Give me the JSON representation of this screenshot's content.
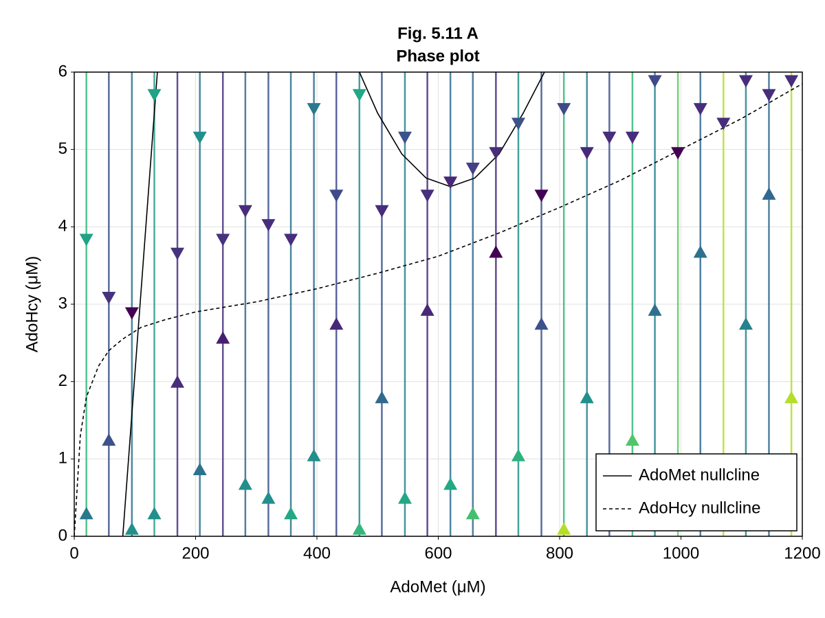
{
  "chart_data": {
    "type": "line",
    "title": "Fig. 5.11 A",
    "subtitle": "Phase plot",
    "xlabel": "AdoMet (μM)",
    "ylabel": "AdoHcy (μM)",
    "xlim": [
      0,
      1200
    ],
    "ylim": [
      0,
      6
    ],
    "xticks": [
      0,
      200,
      400,
      600,
      800,
      1000,
      1200
    ],
    "yticks": [
      0,
      1,
      2,
      3,
      4,
      5,
      6
    ],
    "grid": true,
    "legend": "bottom-right",
    "series": [
      {
        "name": "AdoMet nullcline",
        "color": "#000000",
        "dash": "solid",
        "x": [
          80,
          137,
          null,
          470,
          500,
          540,
          580,
          620,
          660,
          700,
          740,
          775
        ],
        "values": [
          0,
          6,
          null,
          6,
          5.47,
          4.94,
          4.63,
          4.52,
          4.63,
          4.94,
          5.47,
          6
        ]
      },
      {
        "name": "AdoHcy nullcline",
        "color": "#000000",
        "dash": "dashed",
        "x": [
          0,
          10,
          20,
          40,
          57,
          80,
          110,
          150,
          200,
          300,
          400,
          500,
          600,
          700,
          800,
          900,
          1000,
          1100,
          1200
        ],
        "values": [
          0,
          1.3,
          1.8,
          2.2,
          2.4,
          2.55,
          2.7,
          2.8,
          2.9,
          3.03,
          3.2,
          3.4,
          3.62,
          3.92,
          4.25,
          4.6,
          5.0,
          5.4,
          5.85
        ]
      }
    ],
    "streamlines": {
      "x": [
        20,
        57,
        95,
        132,
        170,
        207,
        245,
        282,
        320,
        357,
        395,
        432,
        470,
        507,
        545,
        582,
        620,
        657,
        695,
        732,
        770,
        807,
        845,
        882,
        920,
        957,
        995,
        1032,
        1070,
        1107,
        1145,
        1182
      ],
      "color": [
        "#35b779",
        "#3b528b",
        "#2c728e",
        "#2a9d8a",
        "#46327e",
        "#2c728e",
        "#46327e",
        "#31688e",
        "#3b528b",
        "#2c728e",
        "#2c728e",
        "#3e4a89",
        "#21908c",
        "#3b528b",
        "#26828e",
        "#472d7b",
        "#2c728e",
        "#31688e",
        "#472d7b",
        "#21908c",
        "#3b528b",
        "#35b779",
        "#26828e",
        "#3b528b",
        "#35b779",
        "#26828e",
        "#5ec962",
        "#31688e",
        "#b5de2b",
        "#26828e",
        "#31688e",
        "#b5de2b"
      ]
    },
    "arrows": {
      "x": [
        20,
        20,
        57,
        57,
        95,
        95,
        132,
        132,
        170,
        170,
        207,
        207,
        245,
        245,
        282,
        282,
        320,
        320,
        357,
        357,
        395,
        395,
        432,
        432,
        470,
        470,
        507,
        507,
        545,
        545,
        582,
        582,
        620,
        620,
        657,
        657,
        695,
        695,
        732,
        732,
        770,
        770,
        807,
        807,
        845,
        845,
        882,
        920,
        920,
        957,
        957,
        995,
        1032,
        1032,
        1070,
        1107,
        1107,
        1145,
        1145,
        1182,
        1182
      ],
      "y": [
        3.83,
        0.3,
        3.08,
        1.25,
        2.88,
        0.1,
        5.7,
        0.3,
        3.65,
        2.0,
        5.15,
        0.87,
        3.83,
        2.57,
        4.2,
        0.68,
        4.02,
        0.5,
        3.83,
        0.3,
        5.52,
        1.05,
        4.4,
        2.75,
        5.7,
        0.1,
        4.2,
        1.8,
        5.15,
        0.5,
        4.4,
        2.93,
        4.57,
        0.68,
        4.75,
        0.3,
        4.95,
        3.68,
        5.33,
        1.05,
        4.4,
        2.75,
        5.52,
        0.1,
        4.95,
        1.8,
        5.15,
        5.15,
        1.25,
        5.88,
        2.93,
        4.95,
        5.52,
        3.68,
        5.33,
        5.88,
        2.75,
        5.7,
        4.43,
        5.88,
        1.8
      ],
      "direction": [
        "down",
        "up",
        "down",
        "up",
        "down",
        "up",
        "down",
        "up",
        "down",
        "up",
        "down",
        "up",
        "down",
        "up",
        "down",
        "up",
        "down",
        "up",
        "down",
        "up",
        "down",
        "up",
        "down",
        "up",
        "down",
        "up",
        "down",
        "up",
        "down",
        "up",
        "down",
        "up",
        "down",
        "up",
        "down",
        "up",
        "down",
        "up",
        "down",
        "up",
        "down",
        "up",
        "down",
        "up",
        "down",
        "up",
        "down",
        "down",
        "up",
        "down",
        "up",
        "down",
        "down",
        "up",
        "down",
        "down",
        "up",
        "down",
        "up",
        "down",
        "up"
      ],
      "color": [
        "#20a386",
        "#2a788e",
        "#46327e",
        "#3b528b",
        "#440154",
        "#21908c",
        "#20a386",
        "#21908c",
        "#46327e",
        "#472d7b",
        "#21908c",
        "#2c728e",
        "#46327e",
        "#481f70",
        "#472d7b",
        "#21908c",
        "#472d7b",
        "#21908c",
        "#472d7b",
        "#22a884",
        "#2a788e",
        "#21908c",
        "#3e4a89",
        "#482878",
        "#22a884",
        "#35b779",
        "#472d7b",
        "#31688e",
        "#3b528b",
        "#22a884",
        "#472d7b",
        "#482878",
        "#482878",
        "#22a884",
        "#433e85",
        "#44bf70",
        "#472d7b",
        "#440154",
        "#3b528b",
        "#2db27d",
        "#440154",
        "#3b528b",
        "#3e4a89",
        "#b5de2b",
        "#482878",
        "#21908c",
        "#472d7b",
        "#472d7b",
        "#52c569",
        "#3e4a89",
        "#2c728e",
        "#440154",
        "#472d7b",
        "#2c728e",
        "#472d7b",
        "#472d7b",
        "#26828e",
        "#472d7b",
        "#31688e",
        "#472d7b",
        "#b5de2b"
      ]
    }
  }
}
